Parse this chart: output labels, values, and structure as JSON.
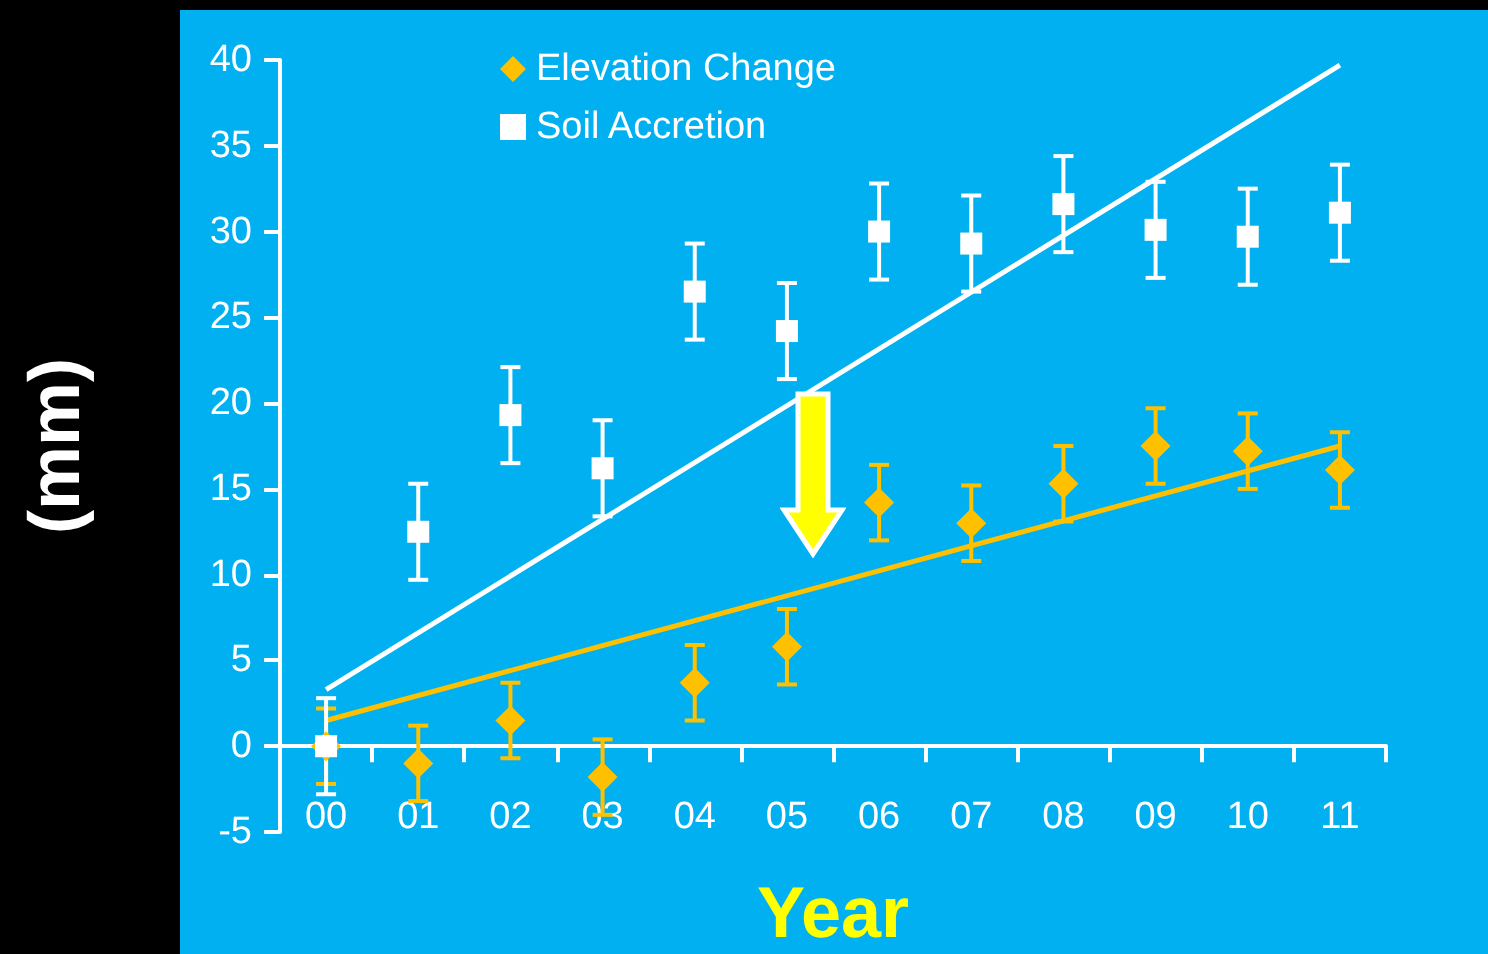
{
  "chart_data": {
    "type": "scatter",
    "xlabel": "Year",
    "ylabel": "(mm)",
    "categories": [
      "00",
      "01",
      "02",
      "03",
      "04",
      "05",
      "06",
      "07",
      "08",
      "09",
      "10",
      "11"
    ],
    "series": [
      {
        "name": "Elevation Change",
        "marker": "diamond",
        "color": "#ffc000",
        "values": [
          0,
          -1.0,
          1.5,
          -1.8,
          3.7,
          5.8,
          14.2,
          13.0,
          15.3,
          17.5,
          17.2,
          16.1
        ],
        "errors": [
          2.2,
          2.2,
          2.2,
          2.2,
          2.2,
          2.2,
          2.2,
          2.2,
          2.2,
          2.2,
          2.2,
          2.2
        ]
      },
      {
        "name": "Soil Accretion",
        "marker": "square",
        "color": "#ffffff",
        "values": [
          0,
          12.5,
          19.3,
          16.2,
          26.5,
          24.2,
          30.0,
          29.3,
          31.6,
          30.1,
          29.7,
          31.1
        ],
        "errors": [
          2.8,
          2.8,
          2.8,
          2.8,
          2.8,
          2.8,
          2.8,
          2.8,
          2.8,
          2.8,
          2.8,
          2.8
        ]
      },
      {
        "type": "line",
        "color": "#ffffff",
        "x": [
          "00",
          "11"
        ],
        "values": [
          3.3,
          39.7
        ]
      },
      {
        "type": "line",
        "color": "#ffc000",
        "x": [
          "00",
          "11"
        ],
        "values": [
          1.5,
          17.5
        ]
      }
    ],
    "ylim": [
      -5,
      40
    ],
    "yticks": [
      -5,
      0,
      5,
      10,
      15,
      20,
      25,
      30,
      35,
      40
    ],
    "legend": "top"
  }
}
